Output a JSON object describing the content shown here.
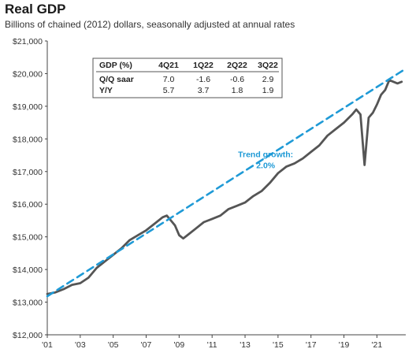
{
  "chart_data": {
    "type": "line",
    "title": "Real GDP",
    "subtitle": "Billions of chained (2012) dollars, seasonally adjusted at annual rates",
    "xlabel": "",
    "ylabel": "",
    "xlim": [
      2001,
      2022.75
    ],
    "ylim": [
      12000,
      21000
    ],
    "y_ticks": [
      12000,
      13000,
      14000,
      15000,
      16000,
      17000,
      18000,
      19000,
      20000,
      21000
    ],
    "y_tick_labels": [
      "$12,000",
      "$13,000",
      "$14,000",
      "$15,000",
      "$16,000",
      "$17,000",
      "$18,000",
      "$19,000",
      "$20,000",
      "$21,000"
    ],
    "x_ticks": [
      2001,
      2003,
      2005,
      2007,
      2009,
      2011,
      2013,
      2015,
      2017,
      2019,
      2021
    ],
    "x_tick_labels": [
      "'01",
      "'03",
      "'05",
      "'07",
      "'09",
      "'11",
      "'13",
      "'15",
      "'17",
      "'19",
      "'21"
    ],
    "grid": false,
    "series": [
      {
        "name": "",
        "color": "#555555",
        "style": "solid",
        "points": [
          [
            2001.0,
            13250
          ],
          [
            2001.5,
            13300
          ],
          [
            2002.0,
            13400
          ],
          [
            2002.5,
            13530
          ],
          [
            2003.0,
            13580
          ],
          [
            2003.5,
            13750
          ],
          [
            2004.0,
            14050
          ],
          [
            2004.5,
            14250
          ],
          [
            2005.0,
            14450
          ],
          [
            2005.5,
            14650
          ],
          [
            2006.0,
            14900
          ],
          [
            2006.5,
            15050
          ],
          [
            2007.0,
            15200
          ],
          [
            2007.5,
            15400
          ],
          [
            2008.0,
            15600
          ],
          [
            2008.25,
            15650
          ],
          [
            2008.5,
            15500
          ],
          [
            2008.75,
            15350
          ],
          [
            2009.0,
            15050
          ],
          [
            2009.25,
            14950
          ],
          [
            2009.5,
            15050
          ],
          [
            2010.0,
            15250
          ],
          [
            2010.5,
            15450
          ],
          [
            2011.0,
            15550
          ],
          [
            2011.5,
            15650
          ],
          [
            2012.0,
            15850
          ],
          [
            2012.5,
            15950
          ],
          [
            2013.0,
            16050
          ],
          [
            2013.5,
            16250
          ],
          [
            2014.0,
            16400
          ],
          [
            2014.5,
            16650
          ],
          [
            2015.0,
            16950
          ],
          [
            2015.5,
            17150
          ],
          [
            2016.0,
            17250
          ],
          [
            2016.5,
            17400
          ],
          [
            2017.0,
            17600
          ],
          [
            2017.5,
            17800
          ],
          [
            2018.0,
            18100
          ],
          [
            2018.5,
            18300
          ],
          [
            2019.0,
            18500
          ],
          [
            2019.5,
            18750
          ],
          [
            2019.75,
            18900
          ],
          [
            2020.0,
            18750
          ],
          [
            2020.25,
            17200
          ],
          [
            2020.5,
            18650
          ],
          [
            2020.75,
            18800
          ],
          [
            2021.0,
            19050
          ],
          [
            2021.25,
            19350
          ],
          [
            2021.5,
            19500
          ],
          [
            2021.75,
            19800
          ],
          [
            2022.0,
            19750
          ],
          [
            2022.25,
            19700
          ],
          [
            2022.5,
            19750
          ]
        ]
      },
      {
        "name": "Trend growth: 2.0%",
        "color": "#1f9ad6",
        "style": "dashed",
        "points": [
          [
            2001.0,
            13180
          ],
          [
            2022.75,
            20150
          ]
        ]
      }
    ],
    "annotations": [
      {
        "text_line1": "Trend growth:",
        "text_line2": "2.0%",
        "x": 2014.25,
        "y": 17300
      }
    ],
    "table": {
      "headers": [
        "GDP (%)",
        "4Q21",
        "1Q22",
        "2Q22",
        "3Q22"
      ],
      "rows": [
        [
          "Q/Q saar",
          "7.0",
          "-1.6",
          "-0.6",
          "2.9"
        ],
        [
          "Y/Y",
          "5.7",
          "3.7",
          "1.8",
          "1.9"
        ]
      ]
    }
  }
}
